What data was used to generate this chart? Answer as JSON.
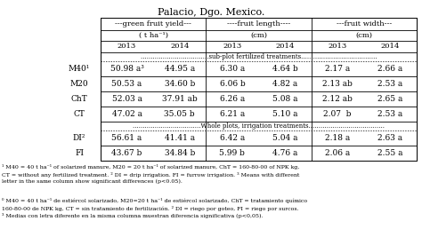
{
  "title": "Palacio, Dgo. Mexico.",
  "groups_row1": [
    "---green fruit yield---",
    "----fruit length----",
    "---fruit width---"
  ],
  "units_row2": [
    "( t ha⁻¹)",
    "(cm)",
    "(cm)"
  ],
  "years_row3": [
    "2013",
    "2014",
    "2013",
    "2014",
    "2013",
    "2014"
  ],
  "subplot_sep": "..................................sub-plot fertilized treatments......................................",
  "whole_sep": "..................................Whole plots, irrigation treatments......................................",
  "rows_subplot": [
    [
      "M40¹",
      "50.98 a³",
      "44.95 a",
      "6.30 a",
      "4.64 b",
      "2.17 a",
      "2.66 a"
    ],
    [
      "M20",
      "50.53 a",
      "34.60 b",
      "6.06 b",
      "4.82 a",
      "2.13 ab",
      "2.53 a"
    ],
    [
      "ChT",
      "52.03 a",
      "37.91 ab",
      "6.26 a",
      "5.08 a",
      "2.12 ab",
      "2.65 a"
    ],
    [
      "CT",
      "47.02 a",
      "35.05 b",
      "6.21 a",
      "5.10 a",
      "2.07  b",
      "2.53 a"
    ]
  ],
  "rows_whole": [
    [
      "DI²",
      "56.61 a",
      "41.41 a",
      "6.42 a",
      "5.04 a",
      "2.18 a",
      "2.63 a"
    ],
    [
      "FI",
      "43.67 b",
      "34.84 b",
      "5.99 b",
      "4.76 a",
      "2.06 a",
      "2.55 a"
    ]
  ],
  "footnote1": "¹ M40 = 40 t ha⁻¹ of solarized manure, M20 = 20 t ha⁻¹ of solarized manure, ChT = 160-80-00 of NPK kg,\nCT = without any fertilized treatment. ² DI = drip irrigation. FI = furrow irrigation. ³ Means with different\nletter in the same column show significant differences (p<0.05).",
  "footnote2": "⁰ M40 = 40 t ha⁻¹ de estiércol solarizado, M20=20 t ha⁻¹ de estiércol solarizado, ChT = tratamiento químico\n160-80-00 de NPK kg, CT = sin tratamiento de fertilización. ² DI = riego por goteo, FI = riego por surcos.\n³ Medias con letra diferente en la misma columna muestran diferencia significativa (p<0,05)."
}
